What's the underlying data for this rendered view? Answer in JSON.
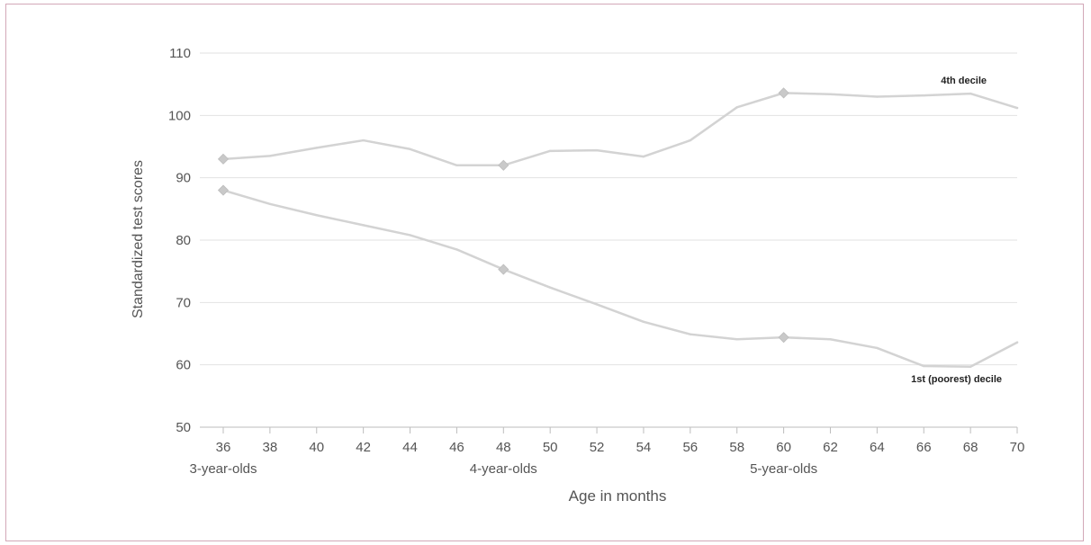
{
  "chart_data": {
    "type": "line",
    "xlabel": "Age in months",
    "ylabel": "Standardized test scores",
    "ylim": [
      50,
      110
    ],
    "xlim": [
      36,
      70
    ],
    "yticks": [
      50,
      60,
      70,
      80,
      90,
      100,
      110
    ],
    "x": [
      36,
      38,
      40,
      42,
      44,
      46,
      48,
      50,
      52,
      54,
      56,
      58,
      60,
      62,
      64,
      66,
      68,
      70
    ],
    "xtick_labels": [
      "36",
      "38",
      "40",
      "42",
      "44",
      "46",
      "48",
      "50",
      "52",
      "54",
      "56",
      "58",
      "60",
      "62",
      "64",
      "66",
      "68",
      "70"
    ],
    "groups": [
      {
        "label": "3-year-olds",
        "x": 36
      },
      {
        "label": "4-year-olds",
        "x": 48
      },
      {
        "label": "5-year-olds",
        "x": 60
      }
    ],
    "grid": true,
    "series": [
      {
        "name": "4th decile",
        "color": "#d3d3d3",
        "values": [
          93,
          93.5,
          94.8,
          96,
          94.6,
          92,
          92,
          94.3,
          94.4,
          93.4,
          96,
          101.3,
          103.6,
          103.4,
          103,
          103.2,
          103.5,
          101.2
        ],
        "marker_x": [
          36,
          48,
          60
        ]
      },
      {
        "name": "1st (poorest) decile",
        "color": "#d3d3d3",
        "values": [
          88,
          85.8,
          84,
          82.4,
          80.8,
          78.5,
          75.3,
          72.4,
          69.7,
          66.9,
          64.9,
          64.1,
          64.4,
          64.1,
          62.7,
          59.8,
          59.7,
          63.6
        ],
        "marker_x": [
          36,
          48,
          60
        ]
      }
    ]
  }
}
